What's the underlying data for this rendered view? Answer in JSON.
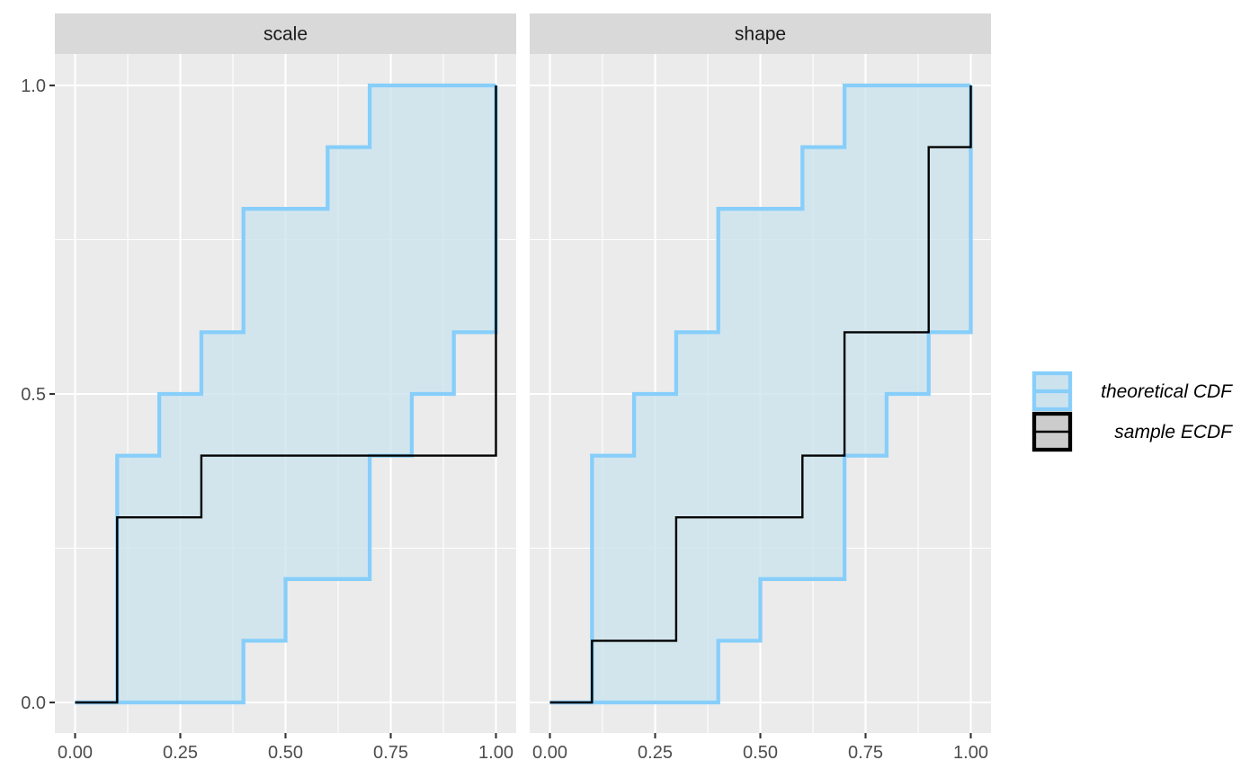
{
  "chart_data": {
    "type": "line",
    "subtype": "faceted step ECDF with theoretical CDF bands",
    "colors": {
      "band_fill": "#cce3ee",
      "band_outline": "#87cefa",
      "ecdf_line": "#000000",
      "legend_ecdf_fill": "#cccccc",
      "panel_background": "#ebebeb",
      "strip_background": "#d9d9d9"
    },
    "xlim": [
      0,
      1
    ],
    "ylim": [
      0,
      1
    ],
    "x_ticks": [
      "0.00",
      "0.25",
      "0.50",
      "0.75",
      "1.00"
    ],
    "x_tick_values": [
      0,
      0.25,
      0.5,
      0.75,
      1
    ],
    "y_ticks": [
      "0.0",
      "0.5",
      "1.0"
    ],
    "y_tick_values": [
      0,
      0.5,
      1
    ],
    "grid": true,
    "legend_position": "right",
    "legend": [
      {
        "key": "band",
        "label": "theoretical CDF"
      },
      {
        "key": "ecdf",
        "label": "sample ECDF"
      }
    ],
    "x": [
      0,
      0.1,
      0.2,
      0.3,
      0.4,
      0.5,
      0.6,
      0.7,
      0.8,
      0.9,
      1.0
    ],
    "panels": [
      {
        "facet": "scale",
        "band_upper": [
          0,
          0.4,
          0.5,
          0.6,
          0.8,
          0.8,
          0.9,
          1.0,
          1.0,
          1.0,
          1.0
        ],
        "band_lower": [
          0,
          0,
          0,
          0,
          0.1,
          0.2,
          0.2,
          0.4,
          0.5,
          0.6,
          1.0
        ],
        "ecdf": [
          0,
          0.3,
          0.3,
          0.4,
          0.4,
          0.4,
          0.4,
          0.4,
          0.4,
          0.4,
          1.0
        ]
      },
      {
        "facet": "shape",
        "band_upper": [
          0,
          0.4,
          0.5,
          0.6,
          0.8,
          0.8,
          0.9,
          1.0,
          1.0,
          1.0,
          1.0
        ],
        "band_lower": [
          0,
          0,
          0,
          0,
          0.1,
          0.2,
          0.2,
          0.4,
          0.5,
          0.6,
          1.0
        ],
        "ecdf": [
          0,
          0.1,
          0.1,
          0.3,
          0.3,
          0.3,
          0.4,
          0.6,
          0.6,
          0.9,
          1.0
        ]
      }
    ]
  }
}
